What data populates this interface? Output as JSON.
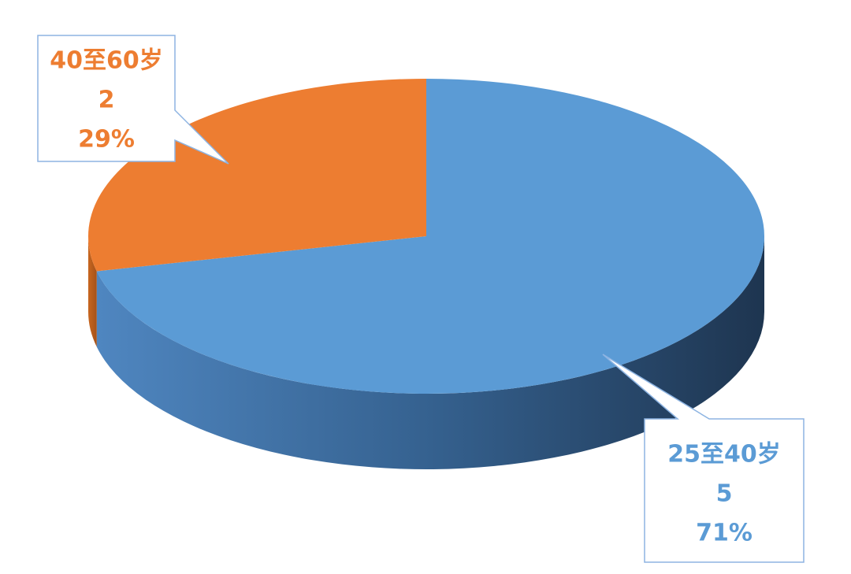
{
  "chart_data": {
    "type": "pie3d",
    "categories": [
      "25至40岁",
      "40至60岁"
    ],
    "values": [
      5,
      2
    ],
    "percentage_labels": [
      "71%",
      "29%"
    ],
    "colors": [
      "#5b9bd5",
      "#ed7d31"
    ]
  }
}
